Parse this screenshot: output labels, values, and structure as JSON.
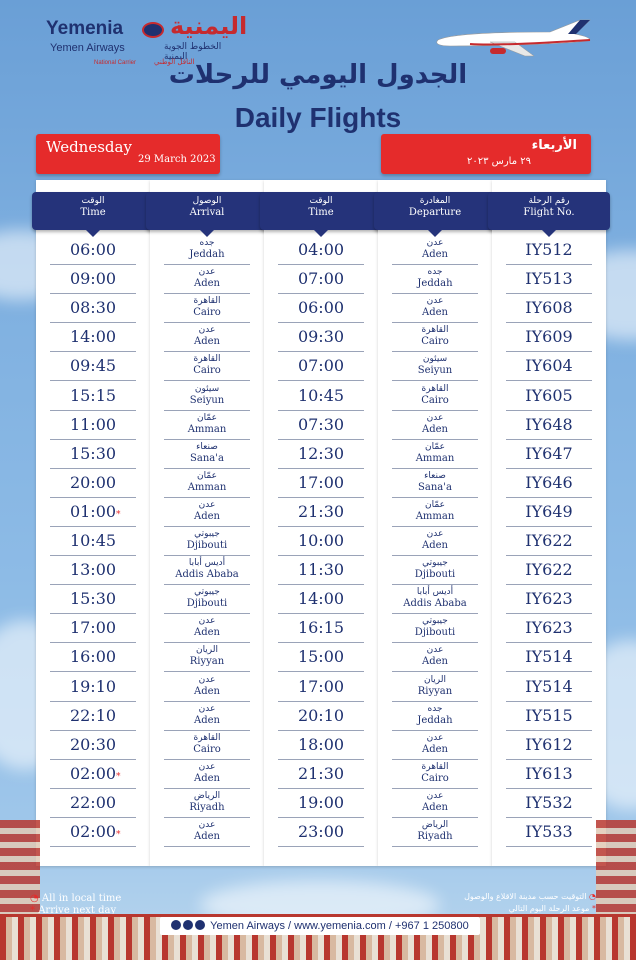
{
  "brand": {
    "name_en": "Yemenia",
    "name_ar": "اليمنية",
    "sub_en": "Yemen Airways",
    "sub_ar": "الخطوط الجوية اليمنية",
    "national_en": "National Carrier",
    "national_ar": "الناقل الوطني"
  },
  "title": {
    "ar": "الجدول اليومي للرحلات",
    "en": "Daily Flights"
  },
  "date_en": {
    "day": "Wednesday",
    "date": "29 March 2023"
  },
  "date_ar": {
    "day": "الأربعاء",
    "date": "٢٩ مارس ٢٠٢٣"
  },
  "columns": {
    "flight": {
      "ar": "رقم الرحلة",
      "en": "Flight No."
    },
    "departure": {
      "ar": "المغادرة",
      "en": "Departure"
    },
    "dep_time": {
      "ar": "الوقت",
      "en": "Time"
    },
    "arrival": {
      "ar": "الوصول",
      "en": "Arrival"
    },
    "arr_time": {
      "ar": "الوقت",
      "en": "Time"
    }
  },
  "flights": [
    {
      "flight": "IY512",
      "dep_ar": "عدن",
      "dep_en": "Aden",
      "dep_time": "04:00",
      "arr_ar": "جده",
      "arr_en": "Jeddah",
      "arr_time": "06:00",
      "next_day": ""
    },
    {
      "flight": "IY513",
      "dep_ar": "جده",
      "dep_en": "Jeddah",
      "dep_time": "07:00",
      "arr_ar": "عدن",
      "arr_en": "Aden",
      "arr_time": "09:00",
      "next_day": ""
    },
    {
      "flight": "IY608",
      "dep_ar": "عدن",
      "dep_en": "Aden",
      "dep_time": "06:00",
      "arr_ar": "القاهرة",
      "arr_en": "Cairo",
      "arr_time": "08:30",
      "next_day": ""
    },
    {
      "flight": "IY609",
      "dep_ar": "القاهرة",
      "dep_en": "Cairo",
      "dep_time": "09:30",
      "arr_ar": "عدن",
      "arr_en": "Aden",
      "arr_time": "14:00",
      "next_day": ""
    },
    {
      "flight": "IY604",
      "dep_ar": "سيئون",
      "dep_en": "Seiyun",
      "dep_time": "07:00",
      "arr_ar": "القاهرة",
      "arr_en": "Cairo",
      "arr_time": "09:45",
      "next_day": ""
    },
    {
      "flight": "IY605",
      "dep_ar": "القاهرة",
      "dep_en": "Cairo",
      "dep_time": "10:45",
      "arr_ar": "سيئون",
      "arr_en": "Seiyun",
      "arr_time": "15:15",
      "next_day": ""
    },
    {
      "flight": "IY648",
      "dep_ar": "عدن",
      "dep_en": "Aden",
      "dep_time": "07:30",
      "arr_ar": "عمّان",
      "arr_en": "Amman",
      "arr_time": "11:00",
      "next_day": ""
    },
    {
      "flight": "IY647",
      "dep_ar": "عمّان",
      "dep_en": "Amman",
      "dep_time": "12:30",
      "arr_ar": "صنعاء",
      "arr_en": "Sana'a",
      "arr_time": "15:30",
      "next_day": ""
    },
    {
      "flight": "IY646",
      "dep_ar": "صنعاء",
      "dep_en": "Sana'a",
      "dep_time": "17:00",
      "arr_ar": "عمّان",
      "arr_en": "Amman",
      "arr_time": "20:00",
      "next_day": ""
    },
    {
      "flight": "IY649",
      "dep_ar": "عمّان",
      "dep_en": "Amman",
      "dep_time": "21:30",
      "arr_ar": "عدن",
      "arr_en": "Aden",
      "arr_time": "01:00",
      "next_day": "*"
    },
    {
      "flight": "IY622",
      "dep_ar": "عدن",
      "dep_en": "Aden",
      "dep_time": "10:00",
      "arr_ar": "جيبوتي",
      "arr_en": "Djibouti",
      "arr_time": "10:45",
      "next_day": ""
    },
    {
      "flight": "IY622",
      "dep_ar": "جيبوتي",
      "dep_en": "Djibouti",
      "dep_time": "11:30",
      "arr_ar": "أديس أبابا",
      "arr_en": "Addis Ababa",
      "arr_time": "13:00",
      "next_day": ""
    },
    {
      "flight": "IY623",
      "dep_ar": "أديس أبابا",
      "dep_en": "Addis Ababa",
      "dep_time": "14:00",
      "arr_ar": "جيبوتي",
      "arr_en": "Djibouti",
      "arr_time": "15:30",
      "next_day": ""
    },
    {
      "flight": "IY623",
      "dep_ar": "جيبوتي",
      "dep_en": "Djibouti",
      "dep_time": "16:15",
      "arr_ar": "عدن",
      "arr_en": "Aden",
      "arr_time": "17:00",
      "next_day": ""
    },
    {
      "flight": "IY514",
      "dep_ar": "عدن",
      "dep_en": "Aden",
      "dep_time": "15:00",
      "arr_ar": "الريان",
      "arr_en": "Riyyan",
      "arr_time": "16:00",
      "next_day": ""
    },
    {
      "flight": "IY514",
      "dep_ar": "الريان",
      "dep_en": "Riyyan",
      "dep_time": "17:00",
      "arr_ar": "عدن",
      "arr_en": "Aden",
      "arr_time": "19:10",
      "next_day": ""
    },
    {
      "flight": "IY515",
      "dep_ar": "جده",
      "dep_en": "Jeddah",
      "dep_time": "20:10",
      "arr_ar": "عدن",
      "arr_en": "Aden",
      "arr_time": "22:10",
      "next_day": ""
    },
    {
      "flight": "IY612",
      "dep_ar": "عدن",
      "dep_en": "Aden",
      "dep_time": "18:00",
      "arr_ar": "القاهرة",
      "arr_en": "Cairo",
      "arr_time": "20:30",
      "next_day": ""
    },
    {
      "flight": "IY613",
      "dep_ar": "القاهرة",
      "dep_en": "Cairo",
      "dep_time": "21:30",
      "arr_ar": "عدن",
      "arr_en": "Aden",
      "arr_time": "02:00",
      "next_day": "*"
    },
    {
      "flight": "IY532",
      "dep_ar": "عدن",
      "dep_en": "Aden",
      "dep_time": "19:00",
      "arr_ar": "الرياض",
      "arr_en": "Riyadh",
      "arr_time": "22:00",
      "next_day": ""
    },
    {
      "flight": "IY533",
      "dep_ar": "الرياض",
      "dep_en": "Riyadh",
      "dep_time": "23:00",
      "arr_ar": "عدن",
      "arr_en": "Aden",
      "arr_time": "02:00",
      "next_day": "*"
    }
  ],
  "notes_en": {
    "local": "All in local time",
    "next": "Arrive next day"
  },
  "notes_ar": {
    "local": "التوقيت حسب مدينة الاقلاع والوصول",
    "next": "موعد الرحلة اليوم التالي"
  },
  "footer": {
    "contact": "Yemen Airways / www.yemenia.com / +967 1 250800"
  },
  "colors": {
    "navy": "#25337a",
    "red": "#e52b2b"
  }
}
